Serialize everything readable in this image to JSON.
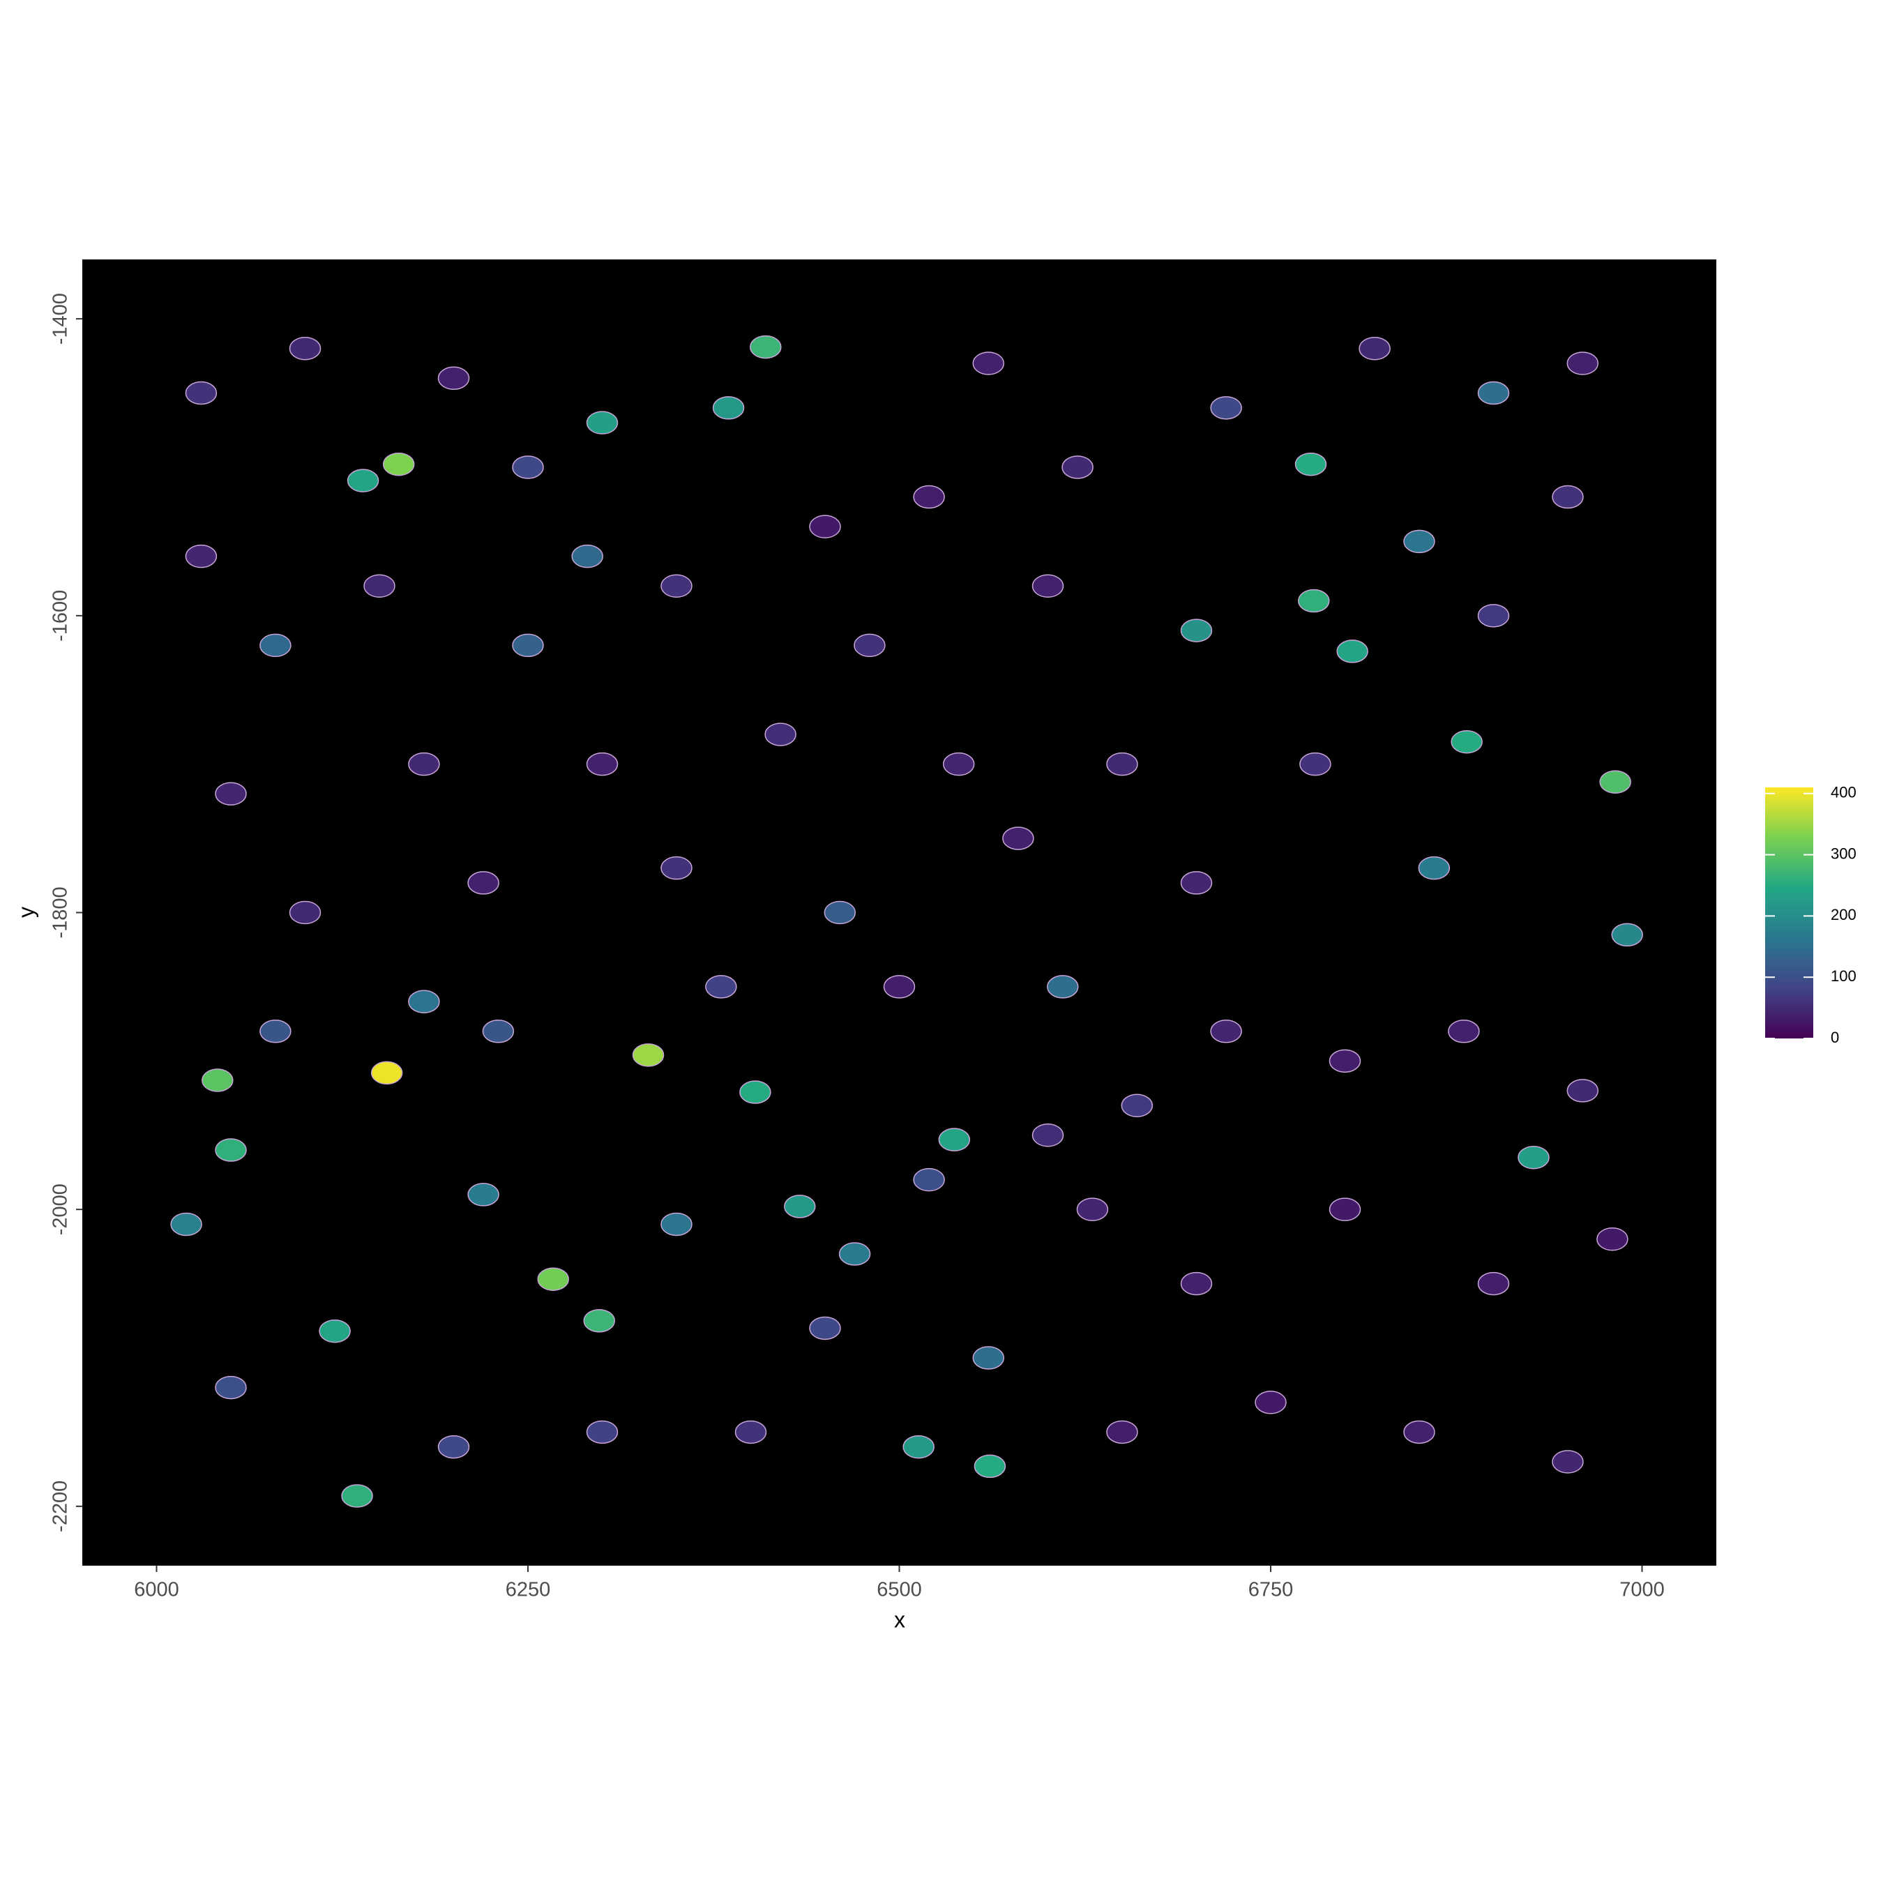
{
  "chart_data": {
    "type": "spatial",
    "x_label": "x",
    "y_label": "y",
    "xlim": [
      5950,
      7050
    ],
    "ylim": [
      -2240,
      -1360
    ],
    "xticks": [
      6000,
      6250,
      6500,
      6750,
      7000
    ],
    "yticks": [
      -2200,
      -2000,
      -1800,
      -1600,
      -1400
    ],
    "background": "#000000",
    "colorscale": [
      "#440154",
      "#414487",
      "#2a788e",
      "#22a884",
      "#7ad151",
      "#fde725"
    ],
    "color_lim": [
      0,
      410
    ],
    "color_ticks": [
      0,
      100,
      200,
      300,
      400
    ],
    "x": [
      6155,
      6331,
      6267,
      6163,
      6041,
      6982,
      6410,
      6777,
      6805,
      6779,
      6298,
      6139,
      6135,
      6561,
      6513,
      6537,
      6927,
      6882,
      6433,
      6403,
      6050,
      6120,
      6300,
      6385,
      6700,
      6990,
      6860,
      6020,
      6220,
      6350,
      6470,
      6610,
      6080,
      6250,
      6900,
      6850,
      6560,
      6180,
      6460,
      6290,
      6030,
      6100,
      6200,
      6030,
      6150,
      6350,
      6450,
      6520,
      6600,
      6650,
      6540,
      6420,
      6300,
      6180,
      6050,
      6100,
      6220,
      6350,
      6500,
      6580,
      6700,
      6780,
      6900,
      6950,
      6960,
      6820,
      6720,
      6800,
      6880,
      6960,
      6980,
      6900,
      6800,
      6700,
      6630,
      6650,
      6750,
      6850,
      6950,
      6600,
      6400,
      6300,
      6200,
      6050,
      6450,
      6520,
      6380,
      6230,
      6080,
      6720,
      6660,
      6480,
      6620,
      6250,
      6560
    ],
    "y": [
      -1908,
      -1896,
      -2047,
      -1498,
      -1913,
      -1712,
      -1419,
      -1498,
      -1624,
      -1590,
      -2075,
      -1509,
      -2193,
      -2173,
      -2160,
      -1953,
      -1965,
      -1685,
      -1998,
      -1921,
      -1960,
      -2082,
      -1470,
      -1460,
      -1610,
      -1815,
      -1770,
      -2010,
      -1990,
      -2010,
      -2030,
      -1850,
      -1620,
      -1620,
      -1450,
      -1550,
      -2100,
      -1860,
      -1800,
      -1560,
      -1450,
      -1420,
      -1440,
      -1560,
      -1580,
      -1580,
      -1540,
      -1520,
      -1580,
      -1700,
      -1700,
      -1680,
      -1700,
      -1700,
      -1720,
      -1800,
      -1780,
      -1770,
      -1850,
      -1750,
      -1780,
      -1700,
      -1600,
      -1520,
      -1430,
      -1420,
      -1880,
      -1900,
      -1880,
      -1920,
      -2020,
      -2050,
      -2000,
      -2050,
      -2000,
      -2150,
      -2130,
      -2150,
      -2170,
      -1950,
      -2150,
      -2150,
      -2160,
      -2120,
      -2080,
      -1980,
      -1850,
      -1880,
      -1880,
      -1460,
      -1930,
      -1620,
      -1500,
      -1500,
      -1430
    ],
    "values": [
      400,
      350,
      320,
      330,
      300,
      290,
      270,
      250,
      240,
      260,
      270,
      240,
      260,
      250,
      220,
      240,
      230,
      250,
      220,
      250,
      260,
      240,
      230,
      220,
      210,
      190,
      170,
      180,
      170,
      160,
      170,
      150,
      140,
      130,
      150,
      160,
      150,
      160,
      120,
      140,
      60,
      50,
      40,
      45,
      50,
      60,
      30,
      35,
      40,
      50,
      45,
      55,
      40,
      50,
      45,
      50,
      40,
      60,
      35,
      40,
      45,
      60,
      70,
      60,
      40,
      50,
      45,
      35,
      40,
      50,
      30,
      35,
      30,
      40,
      45,
      35,
      30,
      40,
      45,
      55,
      60,
      80,
      90,
      100,
      90,
      100,
      80,
      110,
      110,
      90,
      70,
      60,
      50,
      90,
      40
    ]
  }
}
